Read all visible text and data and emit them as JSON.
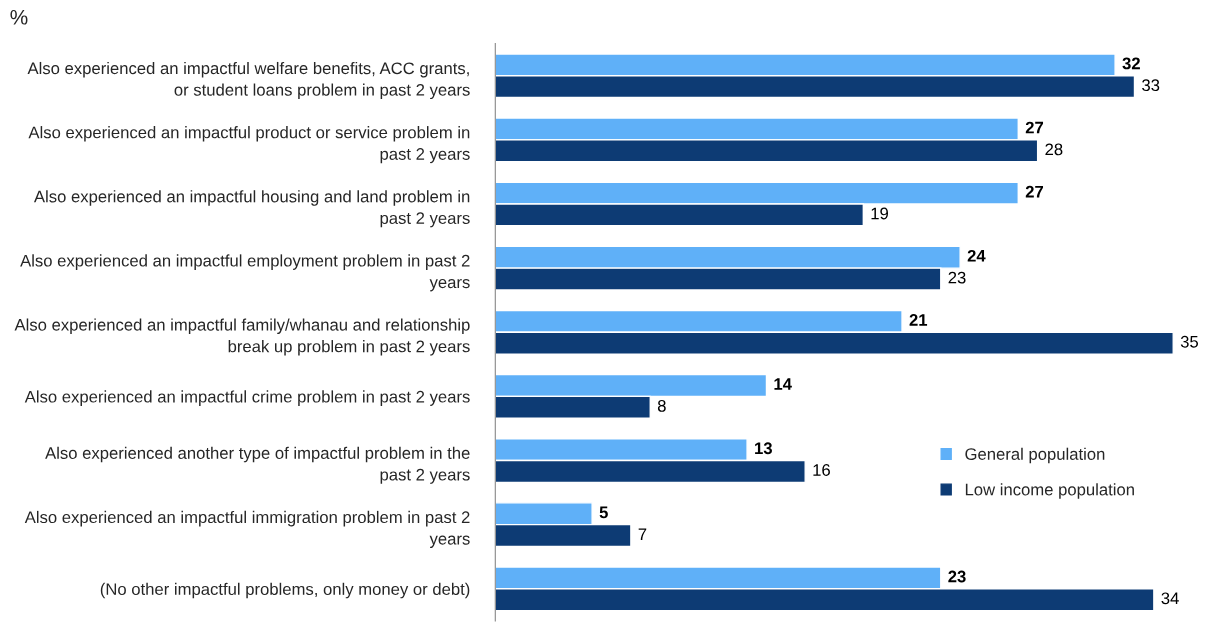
{
  "chart_data": {
    "type": "bar",
    "orientation": "horizontal",
    "title": "%",
    "categories": [
      "Also experienced an impactful welfare benefits, ACC grants, or student loans problem in past 2 years",
      "Also experienced an impactful product or service problem in past 2 years",
      "Also experienced an impactful housing and land problem in past 2 years",
      "Also experienced an impactful employment problem in past 2 years",
      "Also experienced an impactful family/whanau and relationship break up problem in past 2 years",
      "Also experienced an impactful crime problem in past 2 years",
      "Also experienced another type of impactful problem in the past 2 years",
      "Also experienced an impactful immigration problem in past 2 years",
      "(No other impactful problems, only money or debt)"
    ],
    "series": [
      {
        "name": "General population",
        "color": "#5fb0f8",
        "values": [
          32,
          27,
          27,
          24,
          21,
          14,
          13,
          5,
          23
        ]
      },
      {
        "name": "Low income population",
        "color": "#0d3b74",
        "values": [
          33,
          28,
          19,
          23,
          35,
          8,
          16,
          7,
          34
        ]
      }
    ],
    "data_labels": true,
    "legend": "bottom right",
    "grid": false,
    "tick_labels": "y"
  }
}
